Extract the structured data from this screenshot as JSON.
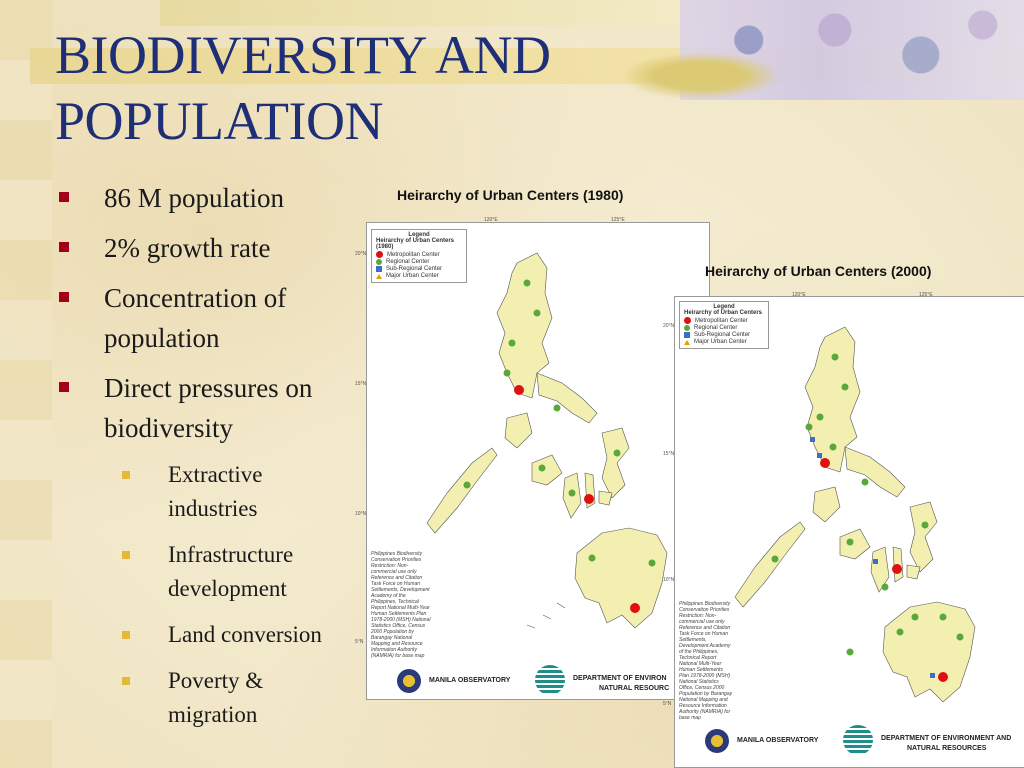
{
  "slide": {
    "title_line1": "BIODIVERSITY AND",
    "title_line2": "POPULATION",
    "bullets": [
      "86 M population",
      "2% growth rate",
      "Concentration of population",
      "Direct pressures on biodiversity"
    ],
    "sub_bullets": [
      "Extractive industries",
      "Infrastructure development",
      "Land conversion",
      "Poverty & migration"
    ]
  },
  "map1980": {
    "title": "Heirarchy of Urban Centers (1980)",
    "legend_title": "Legend",
    "legend_subtitle": "Heirarchy of Urban Centers (1980)",
    "legend_items": [
      "Metropolitan Center",
      "Regional Center",
      "Sub-Regional Center",
      "Major Urban Center"
    ],
    "lon_labels": [
      "120°E",
      "125°E"
    ],
    "lat_labels": [
      "20°N",
      "15°N",
      "10°N",
      "5°N"
    ],
    "credit": "Philippines Biodiversity Conservation Priorities\nRestriction: Non-commercial use only Reference and Citation Task Force on Human Settlements, Development Academy of the Philippines, Technical Report National Multi-Year Human Settlements Plan 1978-2000 (MSH) National Statistics Office, Census 2000 Population by Barangay National Mapping and Resource Information Authority (NAMRIA) for base map",
    "logo1": "MANILA OBSERVATORY",
    "logo2_line1": "DEPARTMENT OF ENVIRON",
    "logo2_line2": "NATURAL RESOURC"
  },
  "map2000": {
    "title": "Heirarchy of Urban Centers (2000)",
    "legend_title": "Legend",
    "legend_subtitle": "Heirarchy of Urban Centers",
    "legend_items": [
      "Metropolitan Center",
      "Regional Center",
      "Sub-Regional Center",
      "Major Urban Center"
    ],
    "lon_labels": [
      "120°E",
      "125°E"
    ],
    "lat_labels": [
      "20°N",
      "15°N",
      "10°N",
      "5°N"
    ],
    "credit": "Philippines Biodiversity Conservation Priorities\nRestriction: Non-commercial use only Reference and Citation Task Force on Human Settlements, Development Academy of the Philippines, Technical Report National Multi-Year Human Settlements Plan 1978-2000 (MSH) National Statistics Office, Census 2000 Population by Barangay National Mapping and Resource Information Authority (NAMRIA) for base map",
    "logo1": "MANILA OBSERVATORY",
    "logo2_line1": "DEPARTMENT OF ENVIRONMENT AND",
    "logo2_line2": "NATURAL RESOURCES"
  },
  "colors": {
    "title": "#1e2f78",
    "bullet": "#a3001b",
    "sub_bullet": "#e6b83a",
    "land": "#f3efb0",
    "metropolitan": "#e01010",
    "regional": "#5aa83a",
    "sub_regional": "#3a6fc8",
    "major_urban": "#e0a300"
  }
}
